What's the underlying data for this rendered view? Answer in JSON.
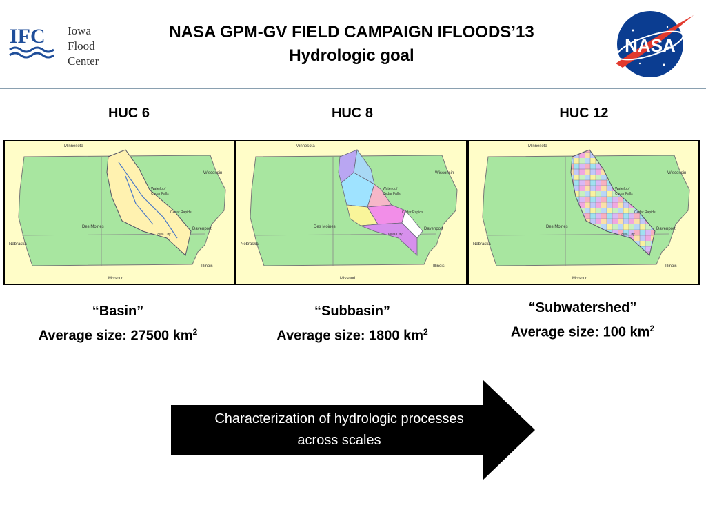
{
  "header": {
    "title_line1": "NASA GPM-GV FIELD CAMPAIGN IFLOODS’13",
    "title_line2": "Hydrologic goal",
    "jfc_logo": {
      "abbr": "IFC",
      "line1": "Iowa",
      "line2": "Flood",
      "line3": "Center"
    },
    "nasa_logo": {
      "text": "NASA"
    }
  },
  "panels": [
    {
      "heading": "HUC 6",
      "name": "“Basin”",
      "size_label": "Average size: 27500 km",
      "size_sup": "2"
    },
    {
      "heading": "HUC 8",
      "name": "“Subbasin”",
      "size_label": "Average size: 1800 km",
      "size_sup": "2"
    },
    {
      "heading": "HUC 12",
      "name": "“Subwatershed”",
      "size_label": "Average size: 100 km",
      "size_sup": "2"
    }
  ],
  "map_labels": {
    "minnesota": "Minnesota",
    "wisconsin": "Wisconsin",
    "waterloo": "Waterloo/",
    "cedar_falls": "Cedar Falls",
    "cedar_rapids": "Cedar Rapids",
    "des_moines": "Des Moines",
    "davenport": "Davenport",
    "iowa_city": "Iowa City",
    "nebraska": "Nebraska",
    "illinois": "Illinois",
    "missouri": "Missouri"
  },
  "arrow": {
    "line1": "Characterization of hydrologic processes",
    "line2": "across scales"
  },
  "colors": {
    "iowa_green": "#a8e6a0",
    "background_yellow": "#fffdc8",
    "basin_yellow": "#fff2b0",
    "rule": "#8aa0b0"
  }
}
